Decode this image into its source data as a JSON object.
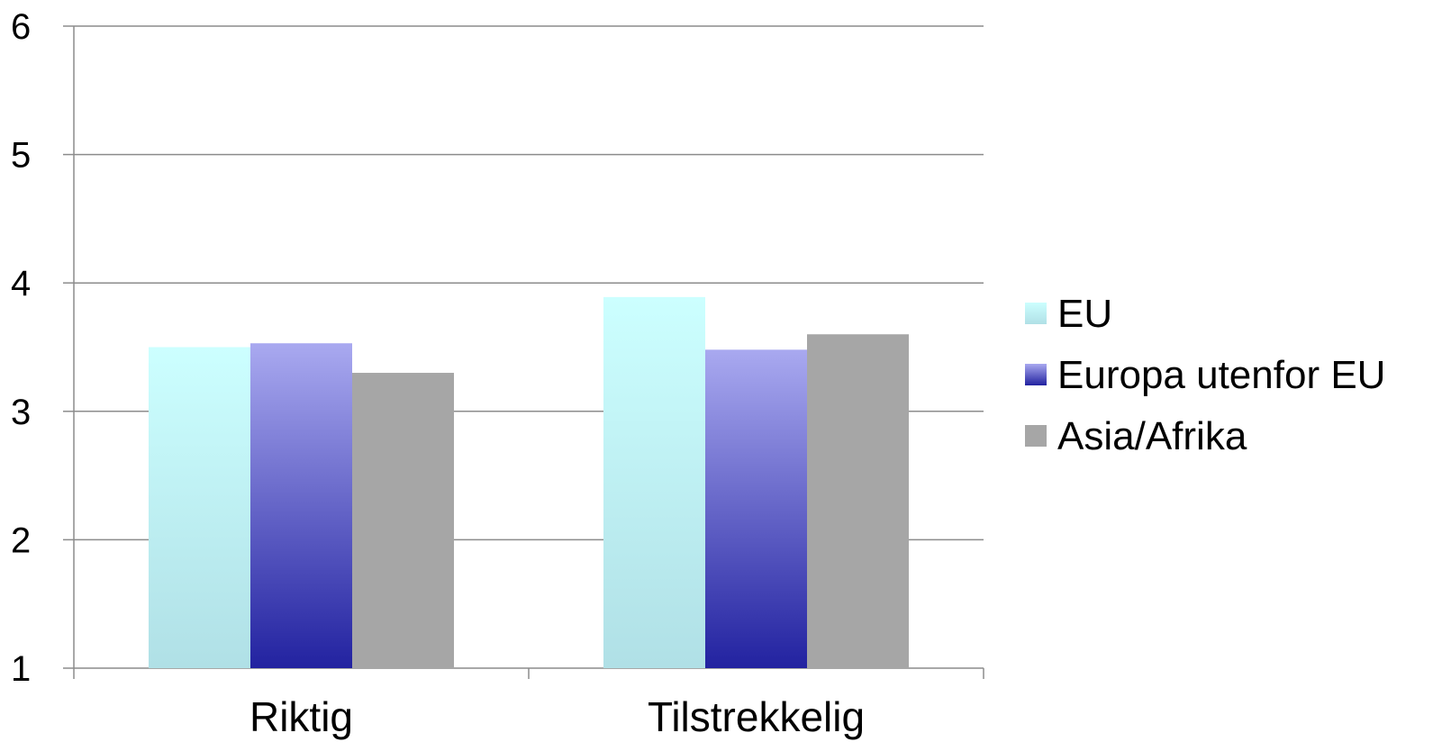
{
  "chart_data": {
    "type": "bar",
    "title": "",
    "xlabel": "",
    "ylabel": "",
    "categories": [
      "Riktig",
      "Tilstrekkelig"
    ],
    "series": [
      {
        "name": "EU",
        "values": [
          3.5,
          3.89
        ],
        "color_top": "#ccffff",
        "color_bottom": "#b0e0e6"
      },
      {
        "name": "Europa utenfor EU",
        "values": [
          3.53,
          3.48
        ],
        "color_top": "#a9a9f0",
        "color_bottom": "#2222a0"
      },
      {
        "name": "Asia/Afrika",
        "values": [
          3.3,
          3.6
        ],
        "color_top": "#a6a6a6",
        "color_bottom": "#a6a6a6"
      }
    ],
    "ylim": [
      1,
      6
    ],
    "yticks": [
      "1",
      "2",
      "3",
      "4",
      "5",
      "6"
    ],
    "grid": true,
    "legend_position": "right"
  }
}
